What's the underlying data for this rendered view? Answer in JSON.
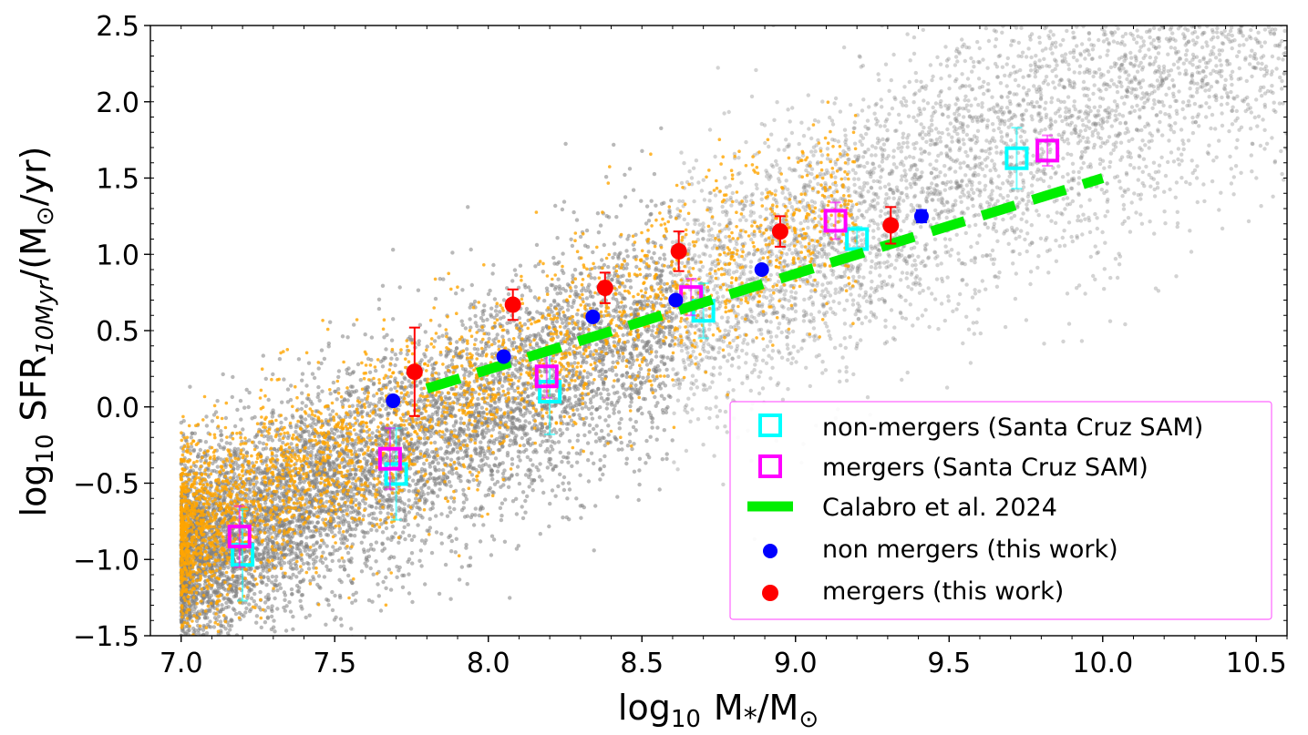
{
  "chart_data": {
    "type": "scatter",
    "xlabel": {
      "main": "log",
      "sub": "10",
      "rest": "M",
      "star": "*",
      "over": "/M",
      "sun": "⊙"
    },
    "ylabel": {
      "main": "log",
      "sub": "10",
      "sfr": "SFR",
      "sfrsub": "10Myr",
      "rest": "/(M",
      "sun": "⊙",
      "tail": "/yr)"
    },
    "xlim": [
      6.9,
      10.6
    ],
    "ylim": [
      -1.5,
      2.5
    ],
    "xticks": [
      7.0,
      7.5,
      8.0,
      8.5,
      9.0,
      9.5,
      10.0,
      10.5
    ],
    "xtick_labels": [
      "7.0",
      "7.5",
      "8.0",
      "8.5",
      "9.0",
      "9.5",
      "10.0",
      "10.5"
    ],
    "yticks": [
      -1.5,
      -1.0,
      -0.5,
      0.0,
      0.5,
      1.0,
      1.5,
      2.0,
      2.5
    ],
    "ytick_labels": [
      "−1.5",
      "−1.0",
      "−0.5",
      "0.0",
      "0.5",
      "1.0",
      "1.5",
      "2.0",
      "2.5"
    ],
    "colors": {
      "background_cloud": "#808080",
      "merger_cloud": "#ffa500",
      "non_mergers_sam": "#00ffff",
      "mergers_sam": "#ff00ff",
      "calabro": "#00ee00",
      "non_mergers_this_work": "#0000ff",
      "mergers_this_work": "#ff0000"
    },
    "background": {
      "description_note": "dense cloud of simulated galaxies (grey) with merger subset (orange)"
    },
    "series": [
      {
        "name": "non-mergers (Santa Cruz SAM)",
        "marker": "open-square",
        "color": "#00ffff",
        "points": [
          {
            "x": 7.2,
            "y": -0.97,
            "err": 0.3
          },
          {
            "x": 7.7,
            "y": -0.44,
            "err": 0.3
          },
          {
            "x": 8.2,
            "y": 0.1,
            "err": 0.28
          },
          {
            "x": 8.7,
            "y": 0.63,
            "err": 0.18
          },
          {
            "x": 9.2,
            "y": 1.1,
            "err": 0.08
          },
          {
            "x": 9.72,
            "y": 1.63,
            "err": 0.2
          }
        ]
      },
      {
        "name": "mergers (Santa Cruz SAM)",
        "marker": "open-square",
        "color": "#ff00ff",
        "points": [
          {
            "x": 7.19,
            "y": -0.85,
            "err": 0.2
          },
          {
            "x": 7.68,
            "y": -0.34,
            "err": 0.2
          },
          {
            "x": 8.19,
            "y": 0.2,
            "err": 0.14
          },
          {
            "x": 8.66,
            "y": 0.72,
            "err": 0.12
          },
          {
            "x": 9.13,
            "y": 1.22,
            "err": 0.12
          },
          {
            "x": 9.82,
            "y": 1.68,
            "err": 0.1
          }
        ]
      },
      {
        "name": "Calabro et al. 2024",
        "marker": "dashed-line",
        "color": "#00ee00",
        "points": [
          {
            "x": 7.8,
            "y": 0.12
          },
          {
            "x": 10.0,
            "y": 1.5
          }
        ]
      },
      {
        "name": "non mergers (this work)",
        "marker": "filled-circle",
        "color": "#0000ff",
        "points": [
          {
            "x": 7.69,
            "y": 0.04,
            "err": 0
          },
          {
            "x": 8.05,
            "y": 0.33,
            "err": 0
          },
          {
            "x": 8.34,
            "y": 0.59,
            "err": 0
          },
          {
            "x": 8.61,
            "y": 0.7,
            "err": 0
          },
          {
            "x": 8.89,
            "y": 0.9,
            "err": 0
          },
          {
            "x": 9.41,
            "y": 1.25,
            "err": 0.04
          }
        ]
      },
      {
        "name": "mergers (this work)",
        "marker": "filled-circle",
        "color": "#ff0000",
        "points": [
          {
            "x": 7.76,
            "y": 0.23,
            "err": 0.29
          },
          {
            "x": 8.08,
            "y": 0.67,
            "err": 0.1
          },
          {
            "x": 8.38,
            "y": 0.78,
            "err": 0.1
          },
          {
            "x": 8.62,
            "y": 1.02,
            "err": 0.13
          },
          {
            "x": 8.95,
            "y": 1.15,
            "err": 0.1
          },
          {
            "x": 9.31,
            "y": 1.19,
            "err": 0.12
          }
        ]
      }
    ],
    "legend": {
      "placement": "lower-right",
      "entries": [
        "non-mergers (Santa Cruz SAM)",
        "mergers (Santa Cruz SAM)",
        "Calabro et al. 2024",
        "non mergers (this work)",
        "mergers (this work)"
      ]
    }
  }
}
